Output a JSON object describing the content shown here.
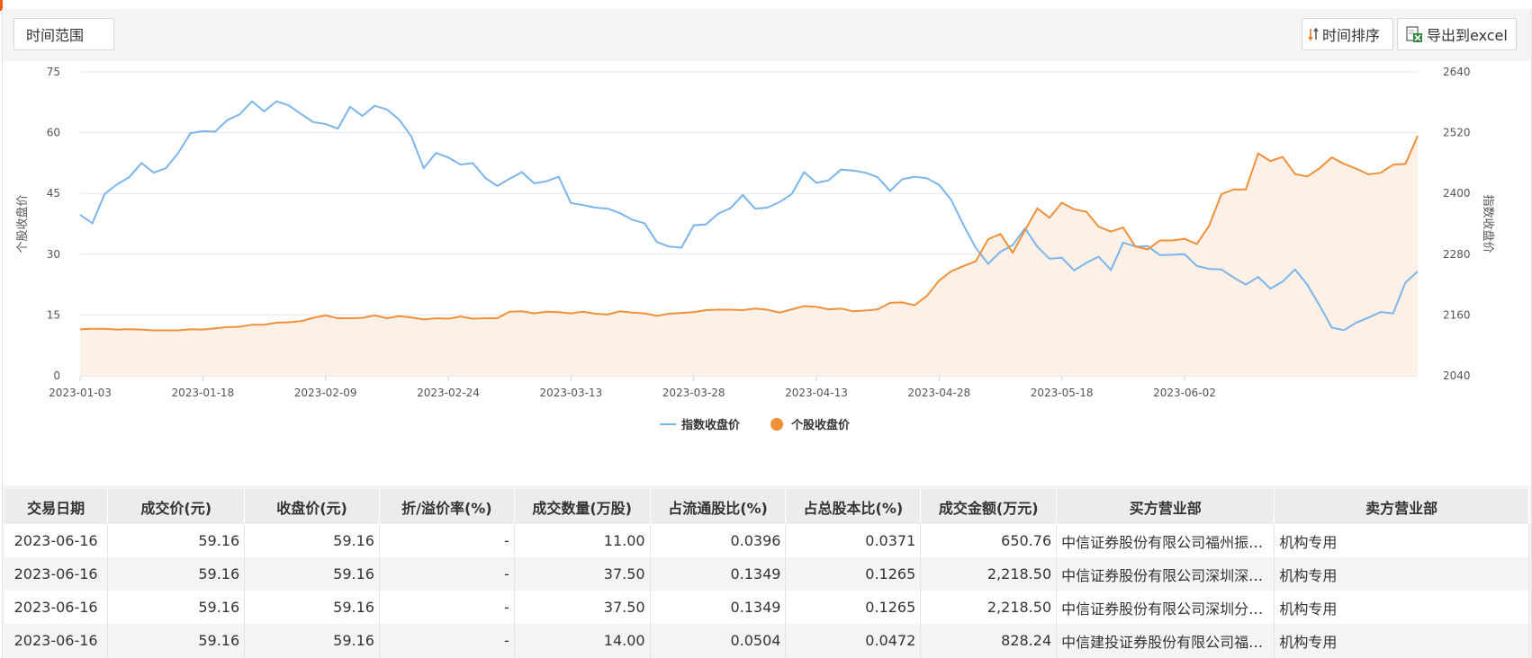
{
  "toolbar": {
    "range_label": "时间范围",
    "sort_label": "时间排序",
    "export_label": "导出到excel",
    "sort_icon": "sort-arrows-icon",
    "export_icon": "excel-file-icon"
  },
  "chart_data": {
    "type": "line",
    "ylabel_left": "个股收盘价",
    "ylabel_right": "指数收盘价",
    "yticks_left": [
      "0",
      "15",
      "30",
      "45",
      "60",
      "75"
    ],
    "yticks_right": [
      "2040",
      "2160",
      "2280",
      "2400",
      "2520",
      "2640"
    ],
    "ylim_left": [
      0,
      75
    ],
    "ylim_right": [
      2040,
      2640
    ],
    "xticks": [
      "2023-01-03",
      "2023-01-18",
      "2023-02-09",
      "2023-02-24",
      "2023-03-13",
      "2023-03-28",
      "2023-04-13",
      "2023-04-28",
      "2023-05-18",
      "2023-06-02"
    ],
    "legend_position": "bottom-center",
    "colors": {
      "index": "#7cb5ec",
      "stock": "#f0913a",
      "stock_area": "#fdf0e6"
    },
    "series": [
      {
        "name": "指数收盘价",
        "axis": "right",
        "values": [
          2358,
          2341,
          2399,
          2418,
          2432,
          2460,
          2441,
          2450,
          2480,
          2519,
          2523,
          2522,
          2545,
          2556,
          2582,
          2562,
          2582,
          2574,
          2557,
          2541,
          2537,
          2528,
          2571,
          2553,
          2573,
          2566,
          2546,
          2512,
          2450,
          2480,
          2471,
          2457,
          2460,
          2431,
          2415,
          2429,
          2442,
          2420,
          2424,
          2433,
          2381,
          2377,
          2372,
          2370,
          2361,
          2348,
          2341,
          2304,
          2295,
          2293,
          2337,
          2339,
          2360,
          2371,
          2397,
          2370,
          2372,
          2383,
          2399,
          2442,
          2421,
          2426,
          2447,
          2445,
          2441,
          2432,
          2405,
          2428,
          2433,
          2430,
          2417,
          2387,
          2337,
          2292,
          2261,
          2285,
          2298,
          2331,
          2295,
          2271,
          2273,
          2248,
          2263,
          2275,
          2249,
          2303,
          2295,
          2296,
          2278,
          2279,
          2280,
          2257,
          2251,
          2250,
          2234,
          2220,
          2235,
          2212,
          2226,
          2250,
          2220,
          2179,
          2135,
          2130,
          2145,
          2155,
          2166,
          2163,
          2224,
          2246
        ]
      },
      {
        "name": "个股收盘价",
        "axis": "left",
        "values": [
          11.5,
          11.6,
          11.6,
          11.4,
          11.5,
          11.4,
          11.2,
          11.2,
          11.2,
          11.5,
          11.4,
          11.7,
          12.0,
          12.1,
          12.6,
          12.6,
          13.1,
          13.2,
          13.5,
          14.3,
          14.9,
          14.2,
          14.2,
          14.3,
          14.9,
          14.2,
          14.7,
          14.4,
          13.9,
          14.2,
          14.1,
          14.6,
          14.1,
          14.2,
          14.2,
          15.8,
          15.9,
          15.4,
          15.8,
          15.7,
          15.4,
          15.8,
          15.3,
          15.1,
          15.9,
          15.6,
          15.4,
          14.8,
          15.3,
          15.5,
          15.7,
          16.2,
          16.3,
          16.3,
          16.2,
          16.6,
          16.3,
          15.6,
          16.4,
          17.2,
          17.0,
          16.4,
          16.6,
          15.9,
          16.1,
          16.4,
          18.0,
          18.1,
          17.4,
          19.7,
          23.5,
          25.8,
          27.1,
          28.3,
          33.7,
          35.0,
          30.4,
          35.9,
          41.3,
          39.0,
          42.7,
          41.1,
          40.5,
          36.8,
          35.6,
          36.6,
          31.9,
          31.2,
          33.4,
          33.4,
          33.8,
          32.5,
          37.0,
          44.8,
          46.0,
          46.0,
          54.9,
          53.0,
          54.0,
          49.8,
          49.2,
          51.2,
          53.9,
          52.3,
          51.1,
          49.7,
          50.1,
          52.1,
          52.3,
          59.2
        ]
      }
    ]
  },
  "table": {
    "headers": [
      "交易日期",
      "成交价(元)",
      "收盘价(元)",
      "折/溢价率(%)",
      "成交数量(万股)",
      "占流通股比(%)",
      "占总股本比(%)",
      "成交金额(万元)",
      "买方营业部",
      "卖方营业部"
    ],
    "rows": [
      [
        "2023-06-16",
        "59.16",
        "59.16",
        "-",
        "11.00",
        "0.0396",
        "0.0371",
        "650.76",
        "中信证券股份有限公司福州振兴路证券营业部",
        "机构专用"
      ],
      [
        "2023-06-16",
        "59.16",
        "59.16",
        "-",
        "37.50",
        "0.1349",
        "0.1265",
        "2,218.50",
        "中信证券股份有限公司深圳深南大道证券营业部",
        "机构专用"
      ],
      [
        "2023-06-16",
        "59.16",
        "59.16",
        "-",
        "37.50",
        "0.1349",
        "0.1265",
        "2,218.50",
        "中信证券股份有限公司深圳分公司",
        "机构专用"
      ],
      [
        "2023-06-16",
        "59.16",
        "59.16",
        "-",
        "14.00",
        "0.0504",
        "0.0472",
        "828.24",
        "中信建投证券股份有限公司福州分公司",
        "机构专用"
      ]
    ]
  }
}
